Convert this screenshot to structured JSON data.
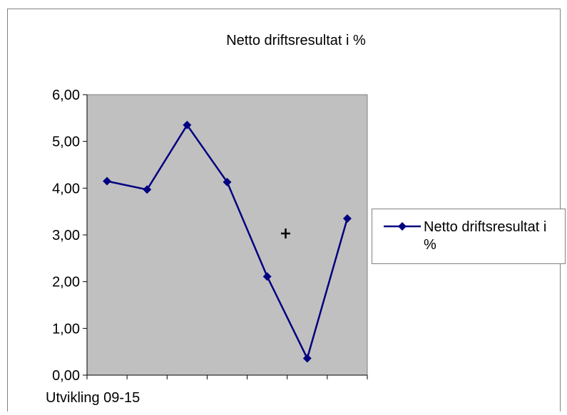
{
  "chart_data": {
    "type": "line",
    "title": "Netto driftsresultat i %",
    "xlabel": "Utvikling 09-15",
    "ylabel": "",
    "ylim": [
      0,
      6
    ],
    "yticks": [
      "0,00",
      "1,00",
      "2,00",
      "3,00",
      "4,00",
      "5,00",
      "6,00"
    ],
    "x": [
      1,
      2,
      3,
      4,
      5,
      6,
      7
    ],
    "series": [
      {
        "name": "Netto driftsresultat i %",
        "values": [
          4.15,
          3.97,
          5.35,
          4.13,
          2.11,
          0.36,
          3.35
        ],
        "color": "#000080"
      }
    ],
    "legend": {
      "position": "right",
      "label_line1": "Netto driftsresultat i",
      "label_line2": "%"
    },
    "plot_background": "#c0c0c0",
    "grid": false
  }
}
